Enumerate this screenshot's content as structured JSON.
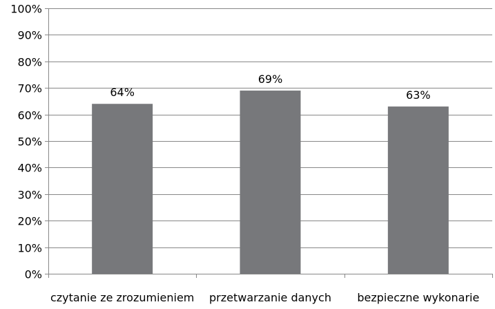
{
  "chart_data": {
    "type": "bar",
    "title": "",
    "xlabel": "",
    "ylabel": "",
    "categories": [
      "czytanie ze zrozumieniem",
      "przetwarzanie danych",
      "bezpieczne wykonarie"
    ],
    "values": [
      64,
      69,
      63
    ],
    "data_labels": [
      "64%",
      "69%",
      "63%"
    ],
    "ylim": [
      0,
      100
    ],
    "y_ticks": [
      0,
      10,
      20,
      30,
      40,
      50,
      60,
      70,
      80,
      90,
      100
    ],
    "y_tick_labels": [
      "0%",
      "10%",
      "20%",
      "30%",
      "40%",
      "50%",
      "60%",
      "70%",
      "80%",
      "90%",
      "100%"
    ],
    "grid": true,
    "legend": "none",
    "colors": {
      "bar": "#77787b",
      "grid": "#878787",
      "axis": "#878787",
      "text": "#000000"
    }
  }
}
